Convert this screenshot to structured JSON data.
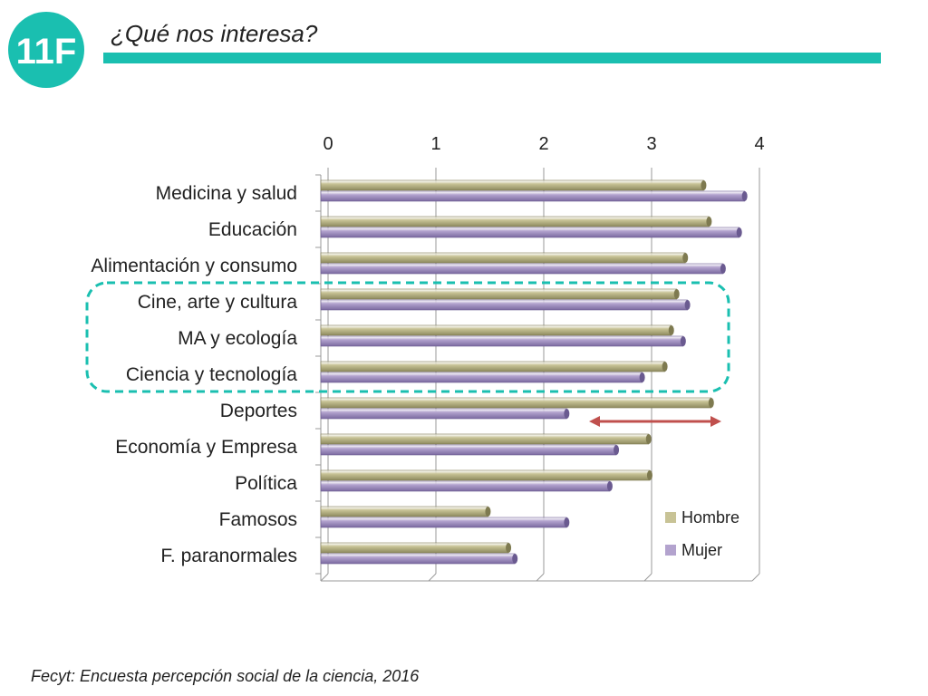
{
  "header": {
    "logo_text": "11F",
    "title": "¿Qué nos interesa?"
  },
  "colors": {
    "accent": "#1ABFB0",
    "hombre": "#C8C396",
    "mujer": "#B3A3CE",
    "arrow": "#C0504D",
    "highlight": "#1ABFB0"
  },
  "chart_data": {
    "type": "bar",
    "orientation": "horizontal",
    "categories": [
      "Medicina y salud",
      "Educación",
      "Alimentación y consumo",
      "Cine, arte y cultura",
      "MA y ecología",
      "Ciencia y tecnología",
      "Deportes",
      "Economía y Empresa",
      "Política",
      "Famosos",
      "F. paranormales"
    ],
    "series": [
      {
        "name": "Hombre",
        "values": [
          3.55,
          3.6,
          3.38,
          3.3,
          3.25,
          3.19,
          3.62,
          3.04,
          3.05,
          1.55,
          1.74
        ]
      },
      {
        "name": "Mujer",
        "values": [
          3.93,
          3.88,
          3.73,
          3.4,
          3.36,
          2.98,
          2.28,
          2.74,
          2.68,
          2.28,
          1.8
        ]
      }
    ],
    "xlim": [
      0,
      4
    ],
    "xticks": [
      "0",
      "1",
      "2",
      "3",
      "4"
    ],
    "grid": true,
    "legend_position": "bottom-right",
    "title": "",
    "xlabel": "",
    "ylabel": ""
  },
  "footer": {
    "source": "Fecyt: Encuesta percepción social de la ciencia, 2016"
  }
}
